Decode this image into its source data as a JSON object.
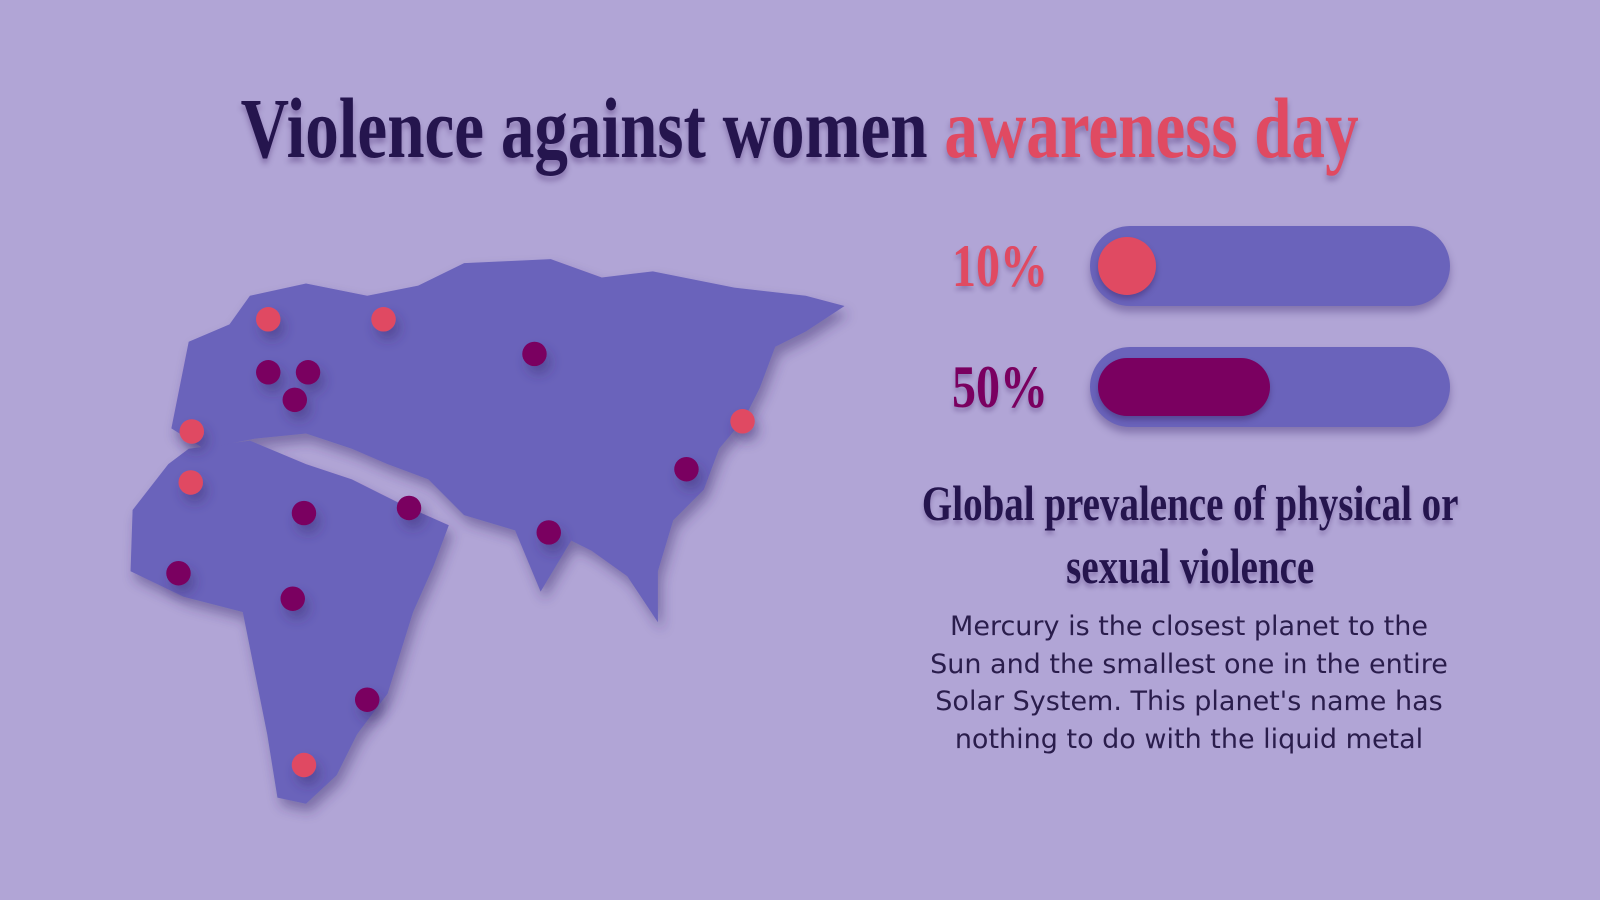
{
  "title": {
    "main": "Violence against women",
    "highlight": "awareness day"
  },
  "bars": {
    "xlim": [
      0,
      100
    ],
    "items": [
      {
        "value": 10,
        "label": "10%",
        "color": "#e04a62"
      },
      {
        "value": 50,
        "label": "50%",
        "color": "#7a0060"
      }
    ]
  },
  "heading": "Global prevalence of physical or sexual violence",
  "body": "Mercury is the closest planet to the Sun and the smallest one in the entire Solar System. This planet's name has nothing to do with the liquid metal"
}
